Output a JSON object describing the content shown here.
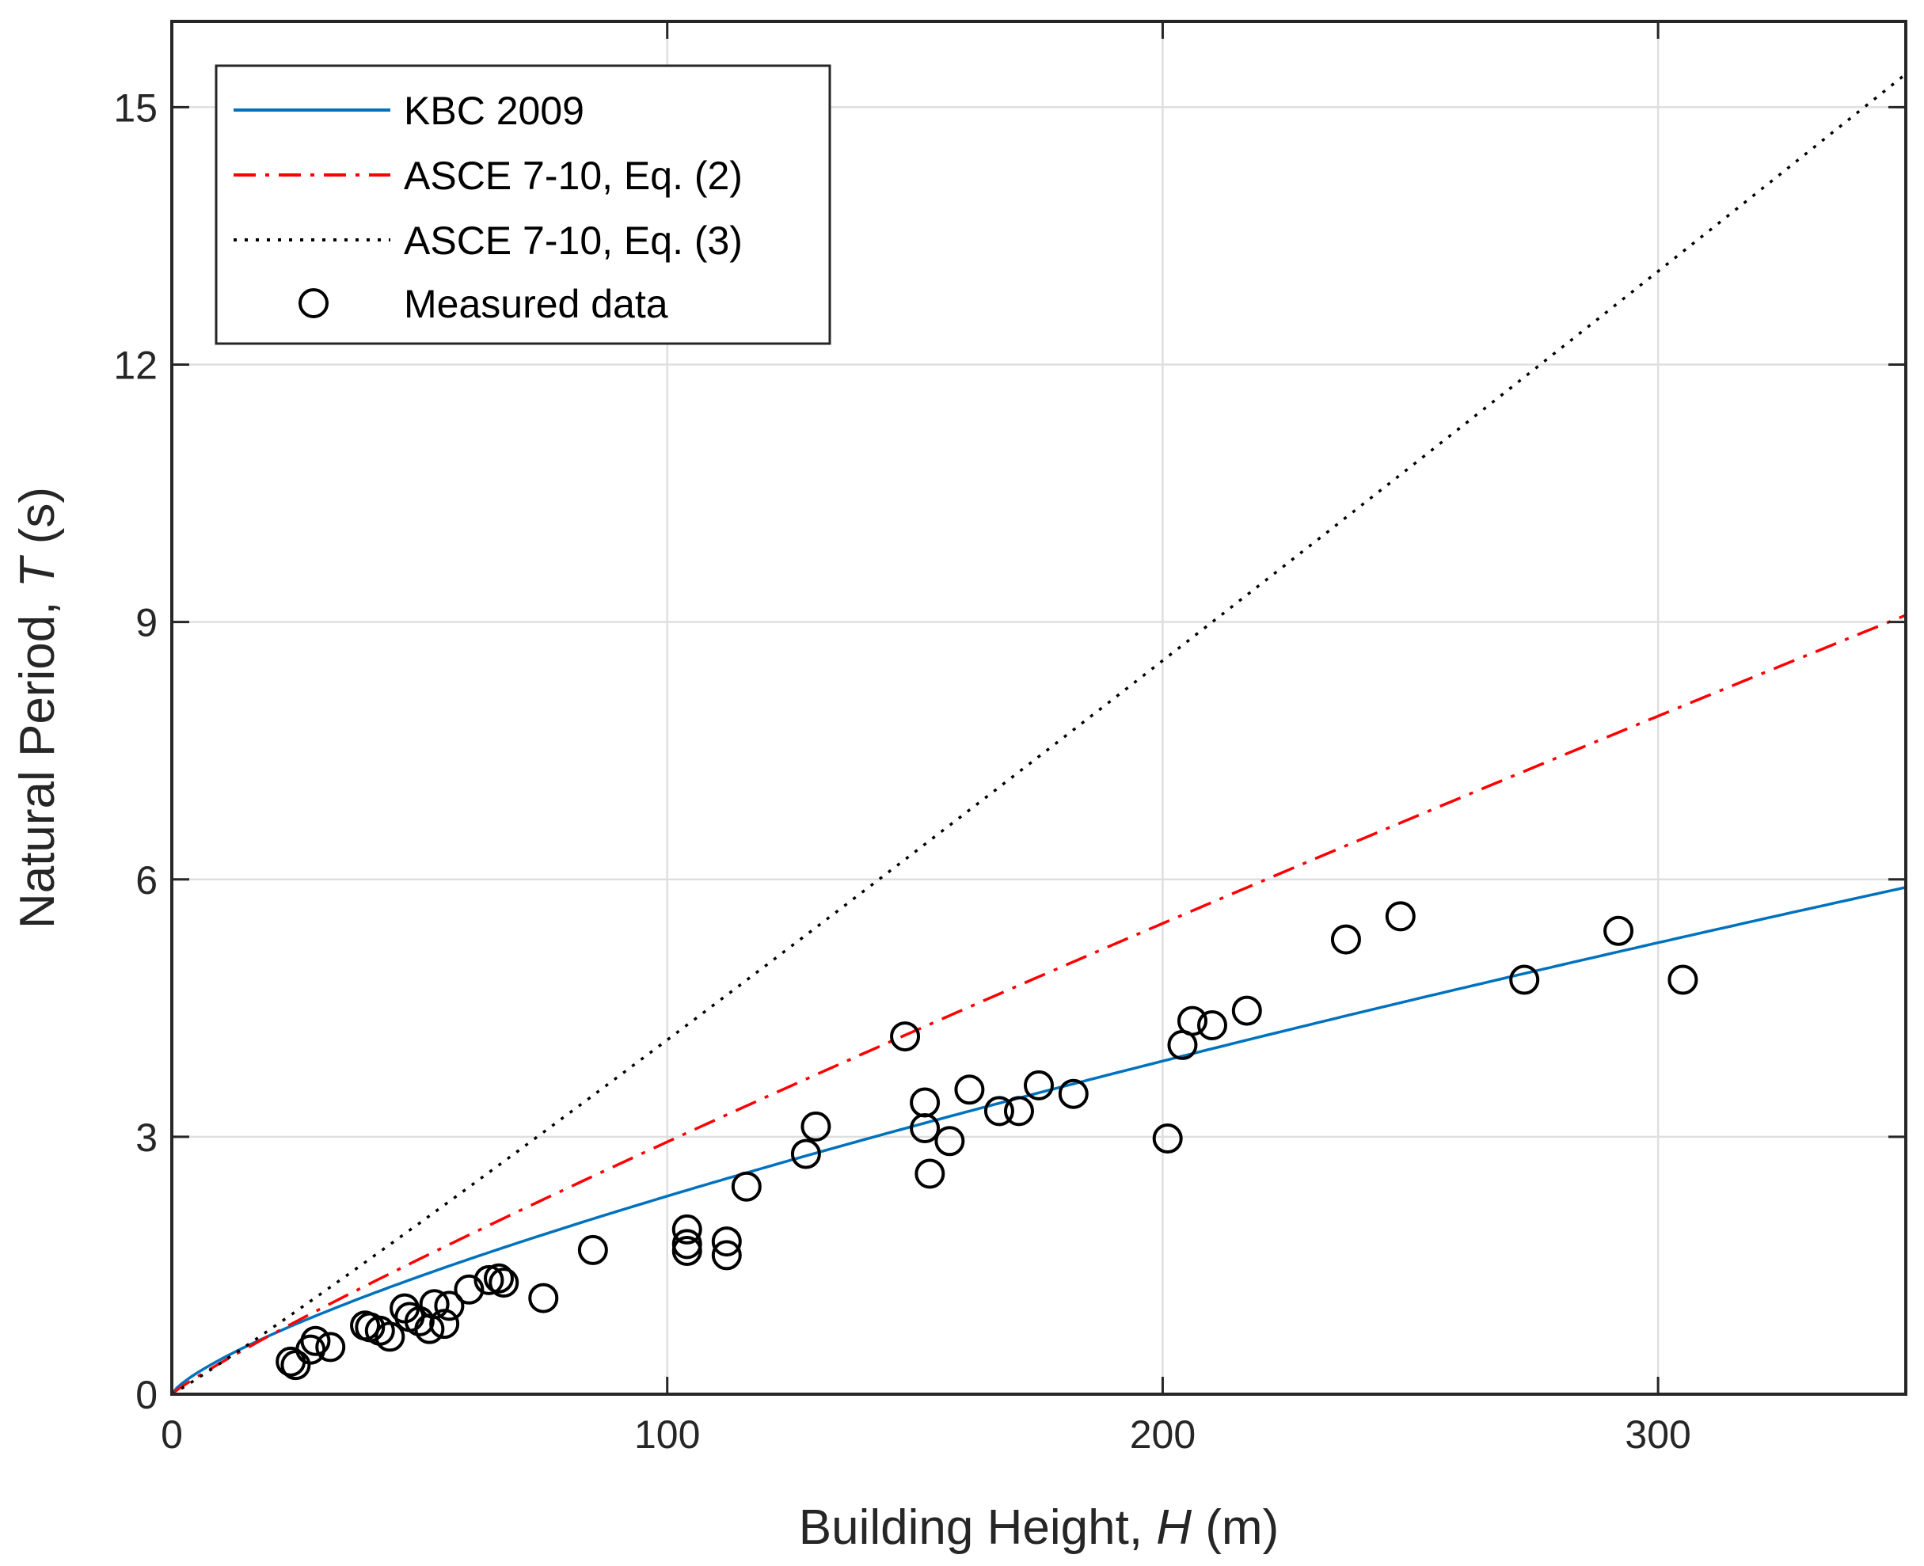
{
  "chart_data": {
    "type": "scatter",
    "xlabel": {
      "prefix": "Building Height, ",
      "var": "H",
      "suffix": " (m)"
    },
    "ylabel": {
      "prefix": "Natural Period, ",
      "var": "T",
      "suffix": " (s)"
    },
    "xlim": [
      0,
      350
    ],
    "ylim": [
      0,
      16
    ],
    "xticks": [
      0,
      100,
      200,
      300
    ],
    "yticks": [
      0,
      3,
      6,
      9,
      12,
      15
    ],
    "grid": true,
    "legend_position": "top-left",
    "series": [
      {
        "name": "KBC 2009",
        "kind": "line",
        "style": "solid",
        "color": "#0072BD",
        "formula": "0.073*x^0.75"
      },
      {
        "name": "ASCE 7-10, Eq. (2)",
        "kind": "line",
        "style": "dashdot",
        "color": "#FF0000",
        "formula": "0.0466*x^0.9"
      },
      {
        "name": "ASCE 7-10, Eq. (3)",
        "kind": "line",
        "style": "dotted",
        "color": "#000000",
        "formula": "0.0328*x^1.05"
      },
      {
        "name": "Measured data",
        "kind": "scatter",
        "color": "#000000",
        "points": [
          [
            24,
            0.38
          ],
          [
            25,
            0.34
          ],
          [
            28,
            0.52
          ],
          [
            29,
            0.62
          ],
          [
            32,
            0.55
          ],
          [
            39,
            0.8
          ],
          [
            40,
            0.78
          ],
          [
            42,
            0.74
          ],
          [
            44,
            0.67
          ],
          [
            47,
            1.0
          ],
          [
            48,
            0.9
          ],
          [
            50,
            0.85
          ],
          [
            52,
            0.76
          ],
          [
            53,
            1.05
          ],
          [
            55,
            0.82
          ],
          [
            56,
            1.03
          ],
          [
            60,
            1.22
          ],
          [
            64,
            1.33
          ],
          [
            66,
            1.35
          ],
          [
            67,
            1.3
          ],
          [
            75,
            1.12
          ],
          [
            85,
            1.68
          ],
          [
            104,
            1.92
          ],
          [
            104,
            1.75
          ],
          [
            104,
            1.67
          ],
          [
            112,
            1.78
          ],
          [
            112,
            1.62
          ],
          [
            116,
            2.42
          ],
          [
            128,
            2.8
          ],
          [
            130,
            3.12
          ],
          [
            148,
            4.17
          ],
          [
            152,
            3.4
          ],
          [
            152,
            3.1
          ],
          [
            153,
            2.57
          ],
          [
            157,
            2.95
          ],
          [
            161,
            3.55
          ],
          [
            167,
            3.3
          ],
          [
            171,
            3.3
          ],
          [
            175,
            3.6
          ],
          [
            182,
            3.5
          ],
          [
            201,
            2.98
          ],
          [
            204,
            4.07
          ],
          [
            206,
            4.35
          ],
          [
            210,
            4.3
          ],
          [
            217,
            4.47
          ],
          [
            237,
            5.3
          ],
          [
            248,
            5.57
          ],
          [
            273,
            4.83
          ],
          [
            292,
            5.4
          ],
          [
            305,
            4.83
          ]
        ]
      }
    ]
  }
}
